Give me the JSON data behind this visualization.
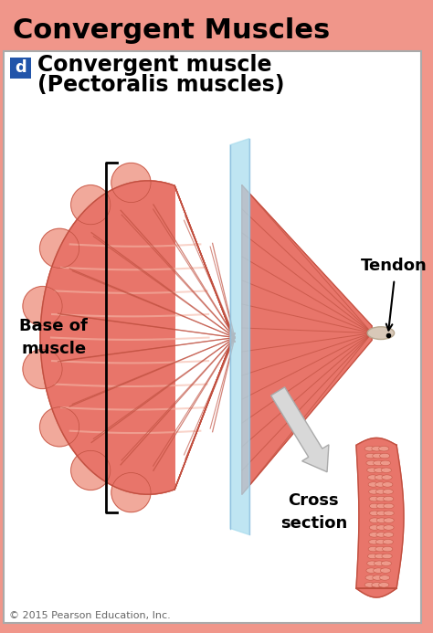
{
  "title": "Convergent Muscles",
  "title_bg": "#F0968A",
  "title_color": "#000000",
  "title_fontsize": 22,
  "subtitle_label": "d",
  "subtitle_label_bg": "#2255AA",
  "subtitle_text1": "Convergent muscle",
  "subtitle_text2": "(Pectoralis muscles)",
  "subtitle_fontsize": 17,
  "body_bg": "#FFFFFF",
  "border_color": "#AAAAAA",
  "muscle_color_main": "#E8756A",
  "muscle_color_dark": "#C05040",
  "muscle_color_mid": "#D96055",
  "muscle_color_light": "#F0A090",
  "muscle_color_highlight": "#F5B8A8",
  "tendon_color": "#E8756A",
  "tendon_line_color": "#C05040",
  "tendon_tip_color": "#D8C8B8",
  "tendon_tip_dark": "#B8A890",
  "blue_plane_color": "#AADDEE",
  "blue_plane_alpha": 0.75,
  "arrow_color": "#D8D8D8",
  "arrow_edge": "#AAAAAA",
  "label_base": "Base of\nmuscle",
  "label_tendon": "Tendon",
  "label_cross": "Cross\nsection",
  "label_fontsize": 13,
  "copyright": "© 2015 Pearson Education, Inc.",
  "copyright_fontsize": 8,
  "outer_border_color": "#BBBBBB",
  "fig_bg": "#F0968A"
}
